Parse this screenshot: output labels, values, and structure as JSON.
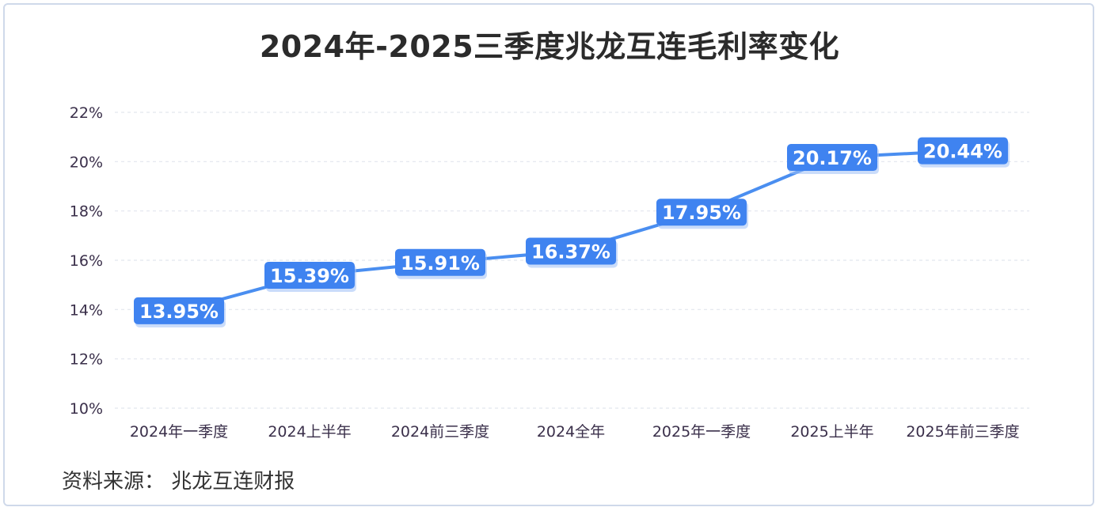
{
  "title": "2024年-2025三季度兆龙互连毛利率变化",
  "source": "资料来源： 兆龙互连财报",
  "colors": {
    "line": "#4a8ef0",
    "label_bg": "#3f83f0",
    "label_text": "#ffffff",
    "grid": "#e2e6ee",
    "tick_text": "#3a2f4a"
  },
  "chart_data": {
    "type": "line",
    "categories": [
      "2024年一季度",
      "2024上半年",
      "2024前三季度",
      "2024全年",
      "2025年一季度",
      "2025上半年",
      "2025年前三季度"
    ],
    "values": [
      13.95,
      15.39,
      15.91,
      16.37,
      17.95,
      20.17,
      20.44
    ],
    "data_labels": [
      "13.95%",
      "15.39%",
      "15.91%",
      "16.37%",
      "17.95%",
      "20.17%",
      "20.44%"
    ],
    "title": "2024年-2025三季度兆龙互连毛利率变化",
    "ylim": [
      10,
      22
    ],
    "yticks": [
      10,
      12,
      14,
      16,
      18,
      20,
      22
    ],
    "ytick_labels": [
      "10%",
      "12%",
      "14%",
      "16%",
      "18%",
      "20%",
      "22%"
    ],
    "grid": true,
    "legend": "none"
  }
}
